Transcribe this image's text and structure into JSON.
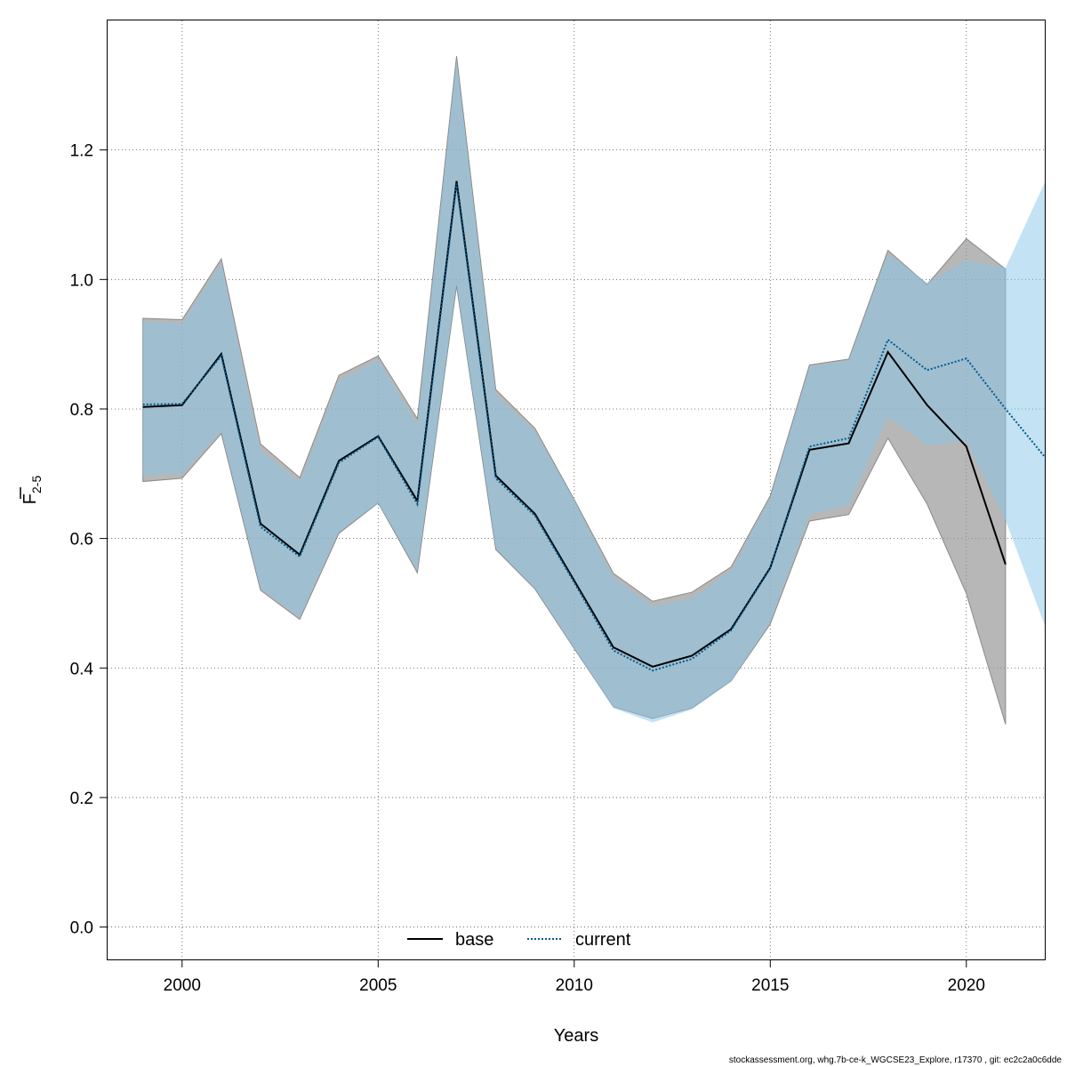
{
  "chart_data": {
    "type": "line",
    "title": "",
    "xlabel": "Years",
    "ylabel_main": "F",
    "ylabel_sub": "2-5",
    "xlim": [
      1998.1,
      2022
    ],
    "ylim": [
      -0.05,
      1.4
    ],
    "xticks": [
      2000,
      2005,
      2010,
      2015,
      2020
    ],
    "yticks": [
      0.0,
      0.2,
      0.4,
      0.6,
      0.8,
      1.0,
      1.2
    ],
    "ytick_labels": [
      "0.0",
      "0.2",
      "0.4",
      "0.6",
      "0.8",
      "1.0",
      "1.2"
    ],
    "grid": true,
    "legend_position": "bottom",
    "series": [
      {
        "name": "base",
        "color": "#000000",
        "band_color": "#999999",
        "line_style": "solid",
        "x": [
          1999,
          2000,
          2001,
          2002,
          2003,
          2004,
          2005,
          2006,
          2007,
          2008,
          2009,
          2010,
          2011,
          2012,
          2013,
          2014,
          2015,
          2016,
          2017,
          2018,
          2019,
          2020,
          2021
        ],
        "values": [
          0.803,
          0.806,
          0.885,
          0.623,
          0.575,
          0.72,
          0.758,
          0.658,
          1.152,
          0.697,
          0.638,
          0.535,
          0.432,
          0.402,
          0.419,
          0.46,
          0.555,
          0.737,
          0.747,
          0.888,
          0.806,
          0.742,
          0.56
        ],
        "lower": [
          0.688,
          0.693,
          0.762,
          0.52,
          0.475,
          0.608,
          0.655,
          0.547,
          0.99,
          0.583,
          0.522,
          0.43,
          0.34,
          0.322,
          0.338,
          0.38,
          0.468,
          0.627,
          0.637,
          0.755,
          0.653,
          0.515,
          0.313
        ],
        "upper": [
          0.94,
          0.938,
          1.032,
          0.746,
          0.694,
          0.852,
          0.882,
          0.785,
          1.345,
          0.83,
          0.77,
          0.66,
          0.546,
          0.503,
          0.517,
          0.556,
          0.666,
          0.868,
          0.877,
          1.045,
          0.992,
          1.063,
          1.016
        ]
      },
      {
        "name": "current",
        "color": "#005a8c",
        "band_color": "#87c7ec",
        "line_style": "dotted",
        "x": [
          1999,
          2000,
          2001,
          2002,
          2003,
          2004,
          2005,
          2006,
          2007,
          2008,
          2009,
          2010,
          2011,
          2012,
          2013,
          2014,
          2015,
          2016,
          2017,
          2018,
          2019,
          2020,
          2021,
          2022
        ],
        "values": [
          0.807,
          0.808,
          0.882,
          0.618,
          0.572,
          0.717,
          0.757,
          0.653,
          1.148,
          0.693,
          0.635,
          0.532,
          0.427,
          0.396,
          0.414,
          0.458,
          0.554,
          0.742,
          0.755,
          0.907,
          0.86,
          0.878,
          0.8,
          0.726
        ],
        "lower": [
          0.697,
          0.7,
          0.765,
          0.523,
          0.478,
          0.61,
          0.655,
          0.55,
          0.992,
          0.585,
          0.523,
          0.43,
          0.338,
          0.316,
          0.336,
          0.379,
          0.47,
          0.637,
          0.652,
          0.788,
          0.744,
          0.75,
          0.628,
          0.466
        ],
        "upper": [
          0.935,
          0.932,
          1.025,
          0.736,
          0.687,
          0.843,
          0.876,
          0.776,
          1.34,
          0.822,
          0.765,
          0.66,
          0.54,
          0.495,
          0.508,
          0.55,
          0.662,
          0.865,
          0.875,
          1.04,
          0.995,
          1.03,
          1.018,
          1.15
        ]
      }
    ]
  },
  "footer": {
    "text": "stockassessment.org, whg.7b-ce-k_WGCSE23_Explore, r17370 , git: ec2c2a0c6dde"
  }
}
